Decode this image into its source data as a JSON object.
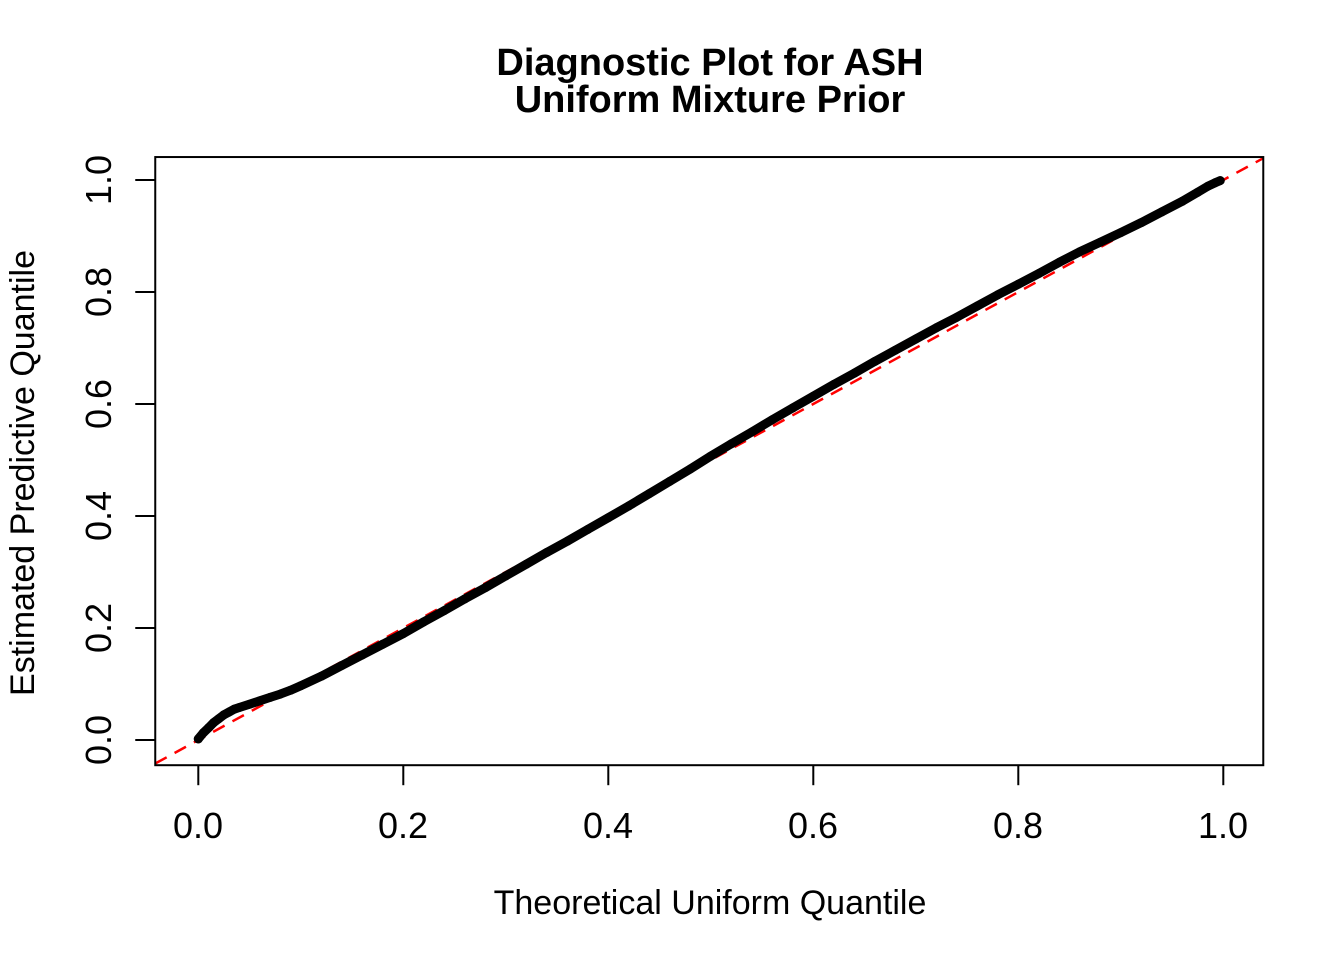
{
  "title": {
    "line1": "Diagnostic Plot for ASH",
    "line2": "Uniform Mixture Prior"
  },
  "axes": {
    "x_label": "Theoretical Uniform Quantile",
    "y_label": "Estimated Predictive Quantile",
    "x_ticks": [
      "0.0",
      "0.2",
      "0.4",
      "0.6",
      "0.8",
      "1.0"
    ],
    "y_ticks": [
      "0.0",
      "0.2",
      "0.4",
      "0.6",
      "0.8",
      "1.0"
    ]
  },
  "colors": {
    "background": "#FFFFFF",
    "text": "#000000",
    "curve": "#000000",
    "reference_line": "#FF0000",
    "frame": "#000000"
  },
  "chart_data": {
    "type": "scatter",
    "title": "Diagnostic Plot for ASH\nUniform Mixture Prior",
    "xlabel": "Theoretical Uniform Quantile",
    "ylabel": "Estimated Predictive Quantile",
    "xlim": [
      -0.042,
      1.039
    ],
    "ylim": [
      -0.045,
      1.041
    ],
    "x_tick_values": [
      0.0,
      0.2,
      0.4,
      0.6,
      0.8,
      1.0
    ],
    "y_tick_values": [
      0.0,
      0.2,
      0.4,
      0.6,
      0.8,
      1.0
    ],
    "grid": false,
    "legend": false,
    "reference_line": {
      "slope": 1,
      "intercept": 0,
      "style": "dashed",
      "color": "#FF0000"
    },
    "series": [
      {
        "name": "estimated-vs-theoretical-quantile",
        "color": "#000000",
        "marker": "point",
        "points": [
          [
            0.0,
            0.002
          ],
          [
            0.005,
            0.013
          ],
          [
            0.01,
            0.022
          ],
          [
            0.015,
            0.031
          ],
          [
            0.02,
            0.038
          ],
          [
            0.025,
            0.045
          ],
          [
            0.03,
            0.05
          ],
          [
            0.035,
            0.055
          ],
          [
            0.04,
            0.058
          ],
          [
            0.05,
            0.064
          ],
          [
            0.06,
            0.07
          ],
          [
            0.07,
            0.076
          ],
          [
            0.08,
            0.082
          ],
          [
            0.09,
            0.089
          ],
          [
            0.1,
            0.097
          ],
          [
            0.12,
            0.114
          ],
          [
            0.14,
            0.133
          ],
          [
            0.16,
            0.152
          ],
          [
            0.18,
            0.171
          ],
          [
            0.2,
            0.19
          ],
          [
            0.22,
            0.211
          ],
          [
            0.24,
            0.231
          ],
          [
            0.26,
            0.252
          ],
          [
            0.28,
            0.272
          ],
          [
            0.3,
            0.293
          ],
          [
            0.32,
            0.314
          ],
          [
            0.34,
            0.335
          ],
          [
            0.36,
            0.355
          ],
          [
            0.38,
            0.376
          ],
          [
            0.4,
            0.397
          ],
          [
            0.42,
            0.418
          ],
          [
            0.44,
            0.44
          ],
          [
            0.46,
            0.462
          ],
          [
            0.48,
            0.484
          ],
          [
            0.5,
            0.507
          ],
          [
            0.52,
            0.529
          ],
          [
            0.54,
            0.55
          ],
          [
            0.56,
            0.572
          ],
          [
            0.58,
            0.593
          ],
          [
            0.6,
            0.614
          ],
          [
            0.62,
            0.635
          ],
          [
            0.64,
            0.655
          ],
          [
            0.66,
            0.676
          ],
          [
            0.68,
            0.696
          ],
          [
            0.7,
            0.716
          ],
          [
            0.72,
            0.736
          ],
          [
            0.74,
            0.755
          ],
          [
            0.76,
            0.775
          ],
          [
            0.78,
            0.795
          ],
          [
            0.8,
            0.814
          ],
          [
            0.82,
            0.833
          ],
          [
            0.84,
            0.853
          ],
          [
            0.86,
            0.872
          ],
          [
            0.88,
            0.889
          ],
          [
            0.9,
            0.906
          ],
          [
            0.92,
            0.924
          ],
          [
            0.94,
            0.943
          ],
          [
            0.96,
            0.962
          ],
          [
            0.975,
            0.978
          ],
          [
            0.985,
            0.989
          ],
          [
            0.992,
            0.995
          ],
          [
            0.997,
            0.999
          ]
        ]
      }
    ]
  }
}
